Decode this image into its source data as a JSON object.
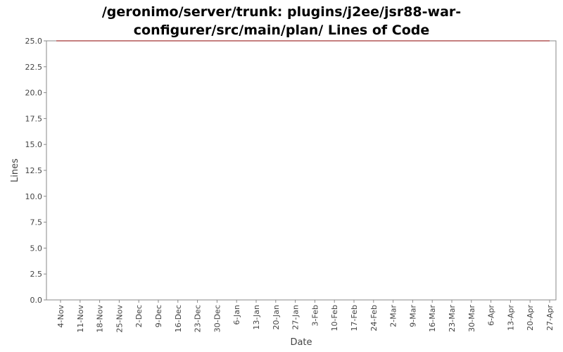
{
  "chart_data": {
    "type": "line",
    "title_lines": [
      "/geronimo/server/trunk: plugins/j2ee/jsr88-war-",
      "configurer/src/main/plan/ Lines of Code"
    ],
    "xlabel": "Date",
    "ylabel": "Lines",
    "ylim": [
      0,
      25
    ],
    "y_ticks": [
      "0.0",
      "2.5",
      "5.0",
      "7.5",
      "10.0",
      "12.5",
      "15.0",
      "17.5",
      "20.0",
      "22.5",
      "25.0"
    ],
    "x_tick_labels": [
      "4-Nov",
      "11-Nov",
      "18-Nov",
      "25-Nov",
      "2-Dec",
      "9-Dec",
      "16-Dec",
      "23-Dec",
      "30-Dec",
      "6-Jan",
      "13-Jan",
      "20-Jan",
      "27-Jan",
      "3-Feb",
      "10-Feb",
      "17-Feb",
      "24-Feb",
      "2-Mar",
      "9-Mar",
      "16-Mar",
      "23-Mar",
      "30-Mar",
      "6-Apr",
      "13-Apr",
      "20-Apr",
      "27-Apr"
    ],
    "series": [
      {
        "x": [
          "4-Nov",
          "27-Apr"
        ],
        "values": [
          25,
          25
        ],
        "color": "#8b0000"
      }
    ],
    "grid": false,
    "colors": {
      "line": "#8b0000",
      "axis": "#888888",
      "text": "#444444"
    }
  }
}
